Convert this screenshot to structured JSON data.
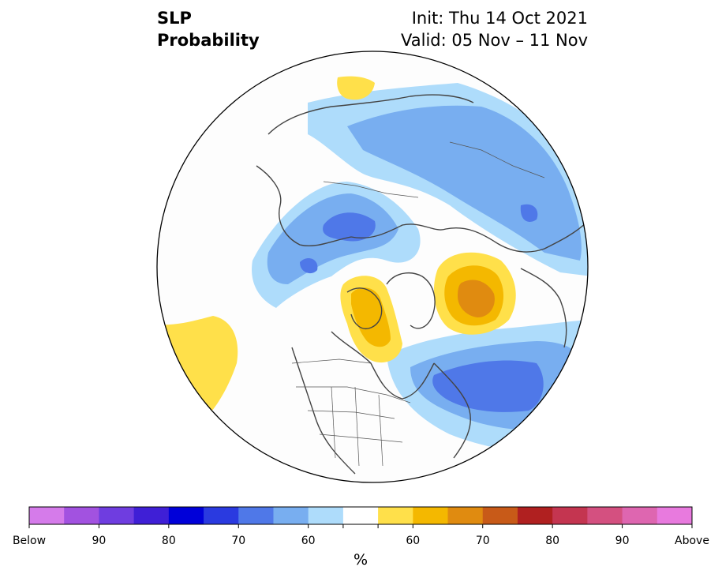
{
  "header": {
    "title_line1": "SLP",
    "title_line2": "Probability",
    "init": "Init: Thu 14 Oct 2021",
    "valid": "Valid: 05 Nov – 11 Nov"
  },
  "colorbar": {
    "colors": [
      "#d57bea",
      "#a252e0",
      "#6f3de0",
      "#3f1fd6",
      "#0000d9",
      "#2a3ae0",
      "#4f78e8",
      "#78aef0",
      "#aedcfb",
      "#ffffff",
      "#ffe04a",
      "#f4b800",
      "#e08b10",
      "#c85a18",
      "#b02020",
      "#c43550",
      "#d45080",
      "#de66b0",
      "#e87ade"
    ],
    "labels": [
      "Below",
      "90",
      "80",
      "70",
      "60",
      "60",
      "70",
      "80",
      "90",
      "Above"
    ],
    "unit": "%"
  },
  "map": {
    "colors": {
      "light_blue": "#aedcfb",
      "mid_blue": "#78aef0",
      "dark_blue": "#4f78e8",
      "yellow": "#ffe04a",
      "gold": "#f4b800",
      "orange": "#e08b10",
      "coast": "#444444"
    }
  }
}
